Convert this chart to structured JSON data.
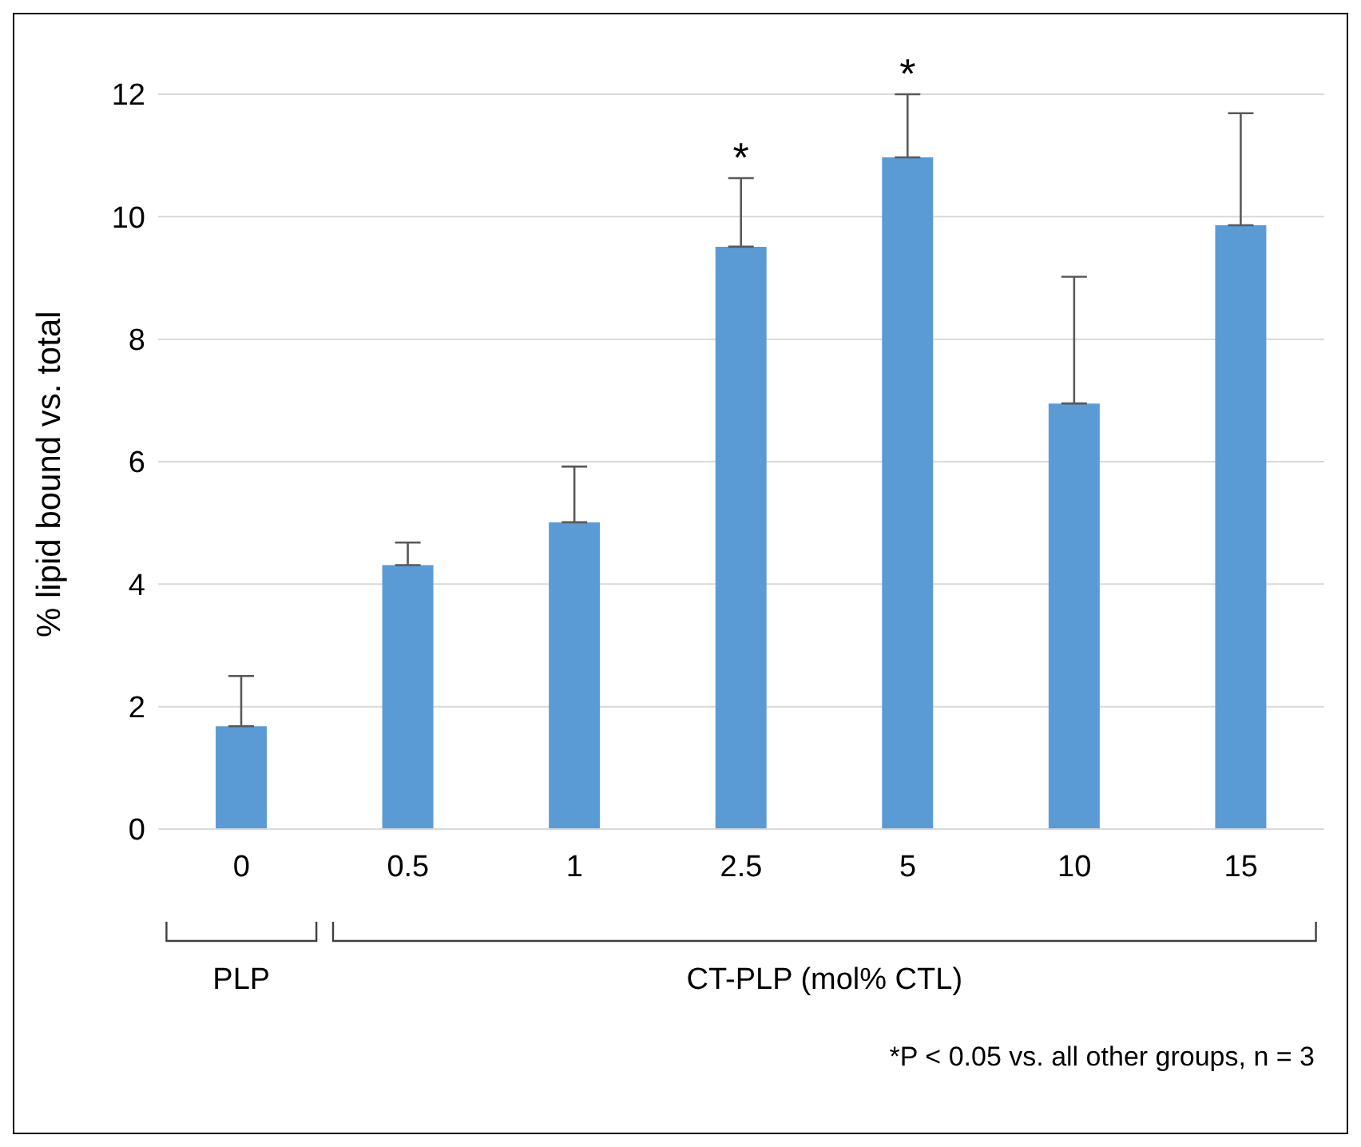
{
  "chart_data": {
    "type": "bar",
    "ylabel": "% lipid bound vs. total",
    "categories": [
      "0",
      "0.5",
      "1",
      "2.5",
      "5",
      "10",
      "15"
    ],
    "series": [
      {
        "color": "#5b9bd5",
        "values": [
          1.68,
          4.31,
          5.01,
          9.51,
          10.97,
          6.95,
          9.86
        ],
        "errors": [
          [
            1.68,
            2.5
          ],
          [
            4.31,
            4.68
          ],
          [
            5.01,
            5.92
          ],
          [
            9.51,
            10.63
          ],
          [
            10.97,
            12.0
          ],
          [
            6.95,
            9.02
          ],
          [
            9.86,
            11.69
          ]
        ]
      }
    ],
    "ylim": [
      0,
      12
    ],
    "yticks": [
      0,
      2,
      4,
      6,
      8,
      10,
      12
    ],
    "grid": "y",
    "legend": false,
    "annotations": [
      {
        "text": "*",
        "x": "2.5",
        "y": 10.63
      },
      {
        "text": "*",
        "x": "5",
        "y": 12.0
      },
      "PLP",
      "CT-PLP (mol% CTL)",
      "*P < 0.05 vs. all other groups, n = 3"
    ]
  }
}
